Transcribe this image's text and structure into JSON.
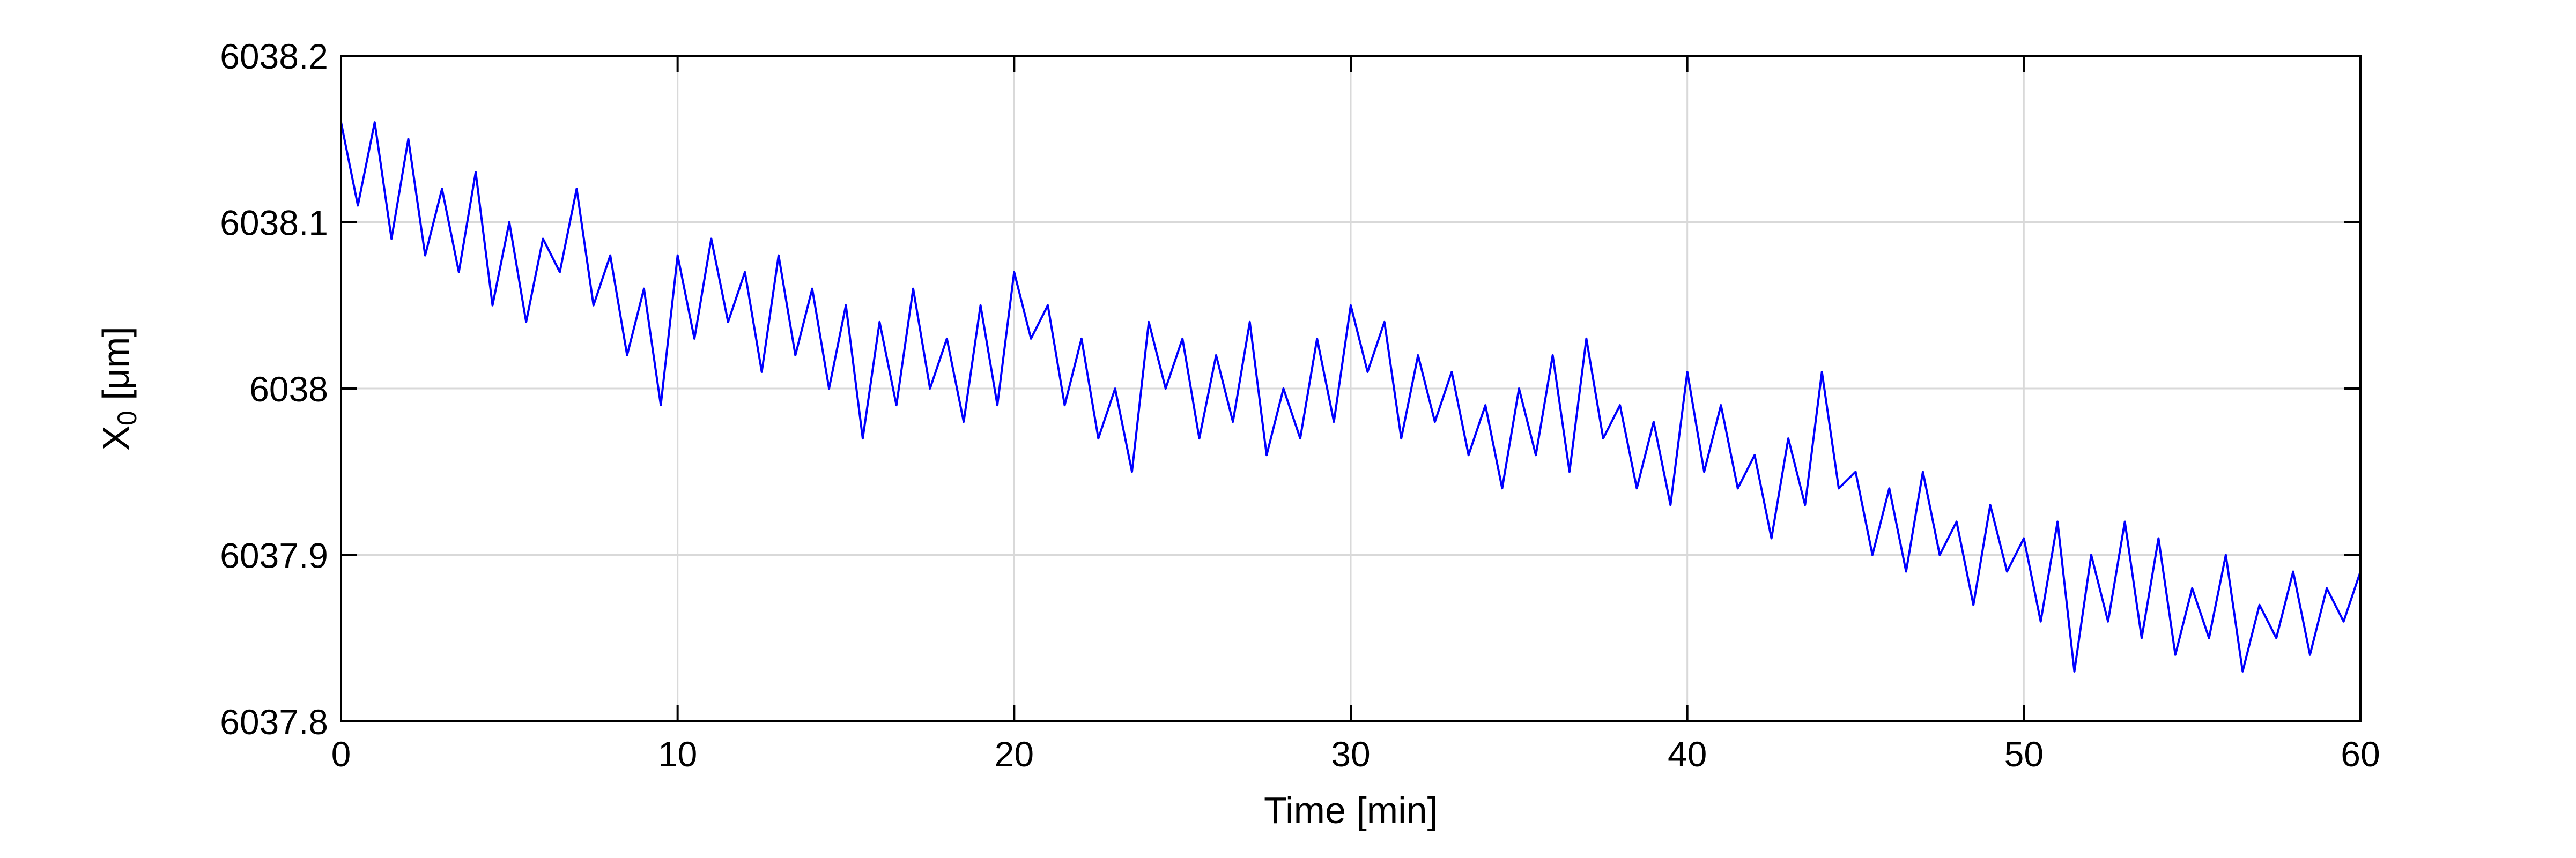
{
  "chart_data": {
    "type": "line",
    "xlabel": "Time [min]",
    "ylabel": "X",
    "ylabel_subscript": "0",
    "ylabel_unit": " [μm]",
    "xlim": [
      0,
      60
    ],
    "ylim": [
      6037.8,
      6038.2
    ],
    "x_ticks": [
      0,
      10,
      20,
      30,
      40,
      50,
      60
    ],
    "x_tick_labels": [
      "0",
      "10",
      "20",
      "30",
      "40",
      "50",
      "60"
    ],
    "y_ticks": [
      6037.8,
      6037.9,
      6038.0,
      6038.1,
      6038.2
    ],
    "y_tick_labels": [
      "6037.8",
      "6037.9",
      "6038",
      "6038.1",
      "6038.2"
    ],
    "grid": true,
    "series": [
      {
        "color": "#0000ff",
        "x": [
          0,
          0.5,
          1,
          1.5,
          2,
          2.5,
          3,
          3.5,
          4,
          4.5,
          5,
          5.5,
          6,
          6.5,
          7,
          7.5,
          8,
          8.5,
          9,
          9.5,
          10,
          10.5,
          11,
          11.5,
          12,
          12.5,
          13,
          13.5,
          14,
          14.5,
          15,
          15.5,
          16,
          16.5,
          17,
          17.5,
          18,
          18.5,
          19,
          19.5,
          20,
          20.5,
          21,
          21.5,
          22,
          22.5,
          23,
          23.5,
          24,
          24.5,
          25,
          25.5,
          26,
          26.5,
          27,
          27.5,
          28,
          28.5,
          29,
          29.5,
          30,
          30.5,
          31,
          31.5,
          32,
          32.5,
          33,
          33.5,
          34,
          34.5,
          35,
          35.5,
          36,
          36.5,
          37,
          37.5,
          38,
          38.5,
          39,
          39.5,
          40,
          40.5,
          41,
          41.5,
          42,
          42.5,
          43,
          43.5,
          44,
          44.5,
          45,
          45.5,
          46,
          46.5,
          47,
          47.5,
          48,
          48.5,
          49,
          49.5,
          50,
          50.5,
          51,
          51.5,
          52,
          52.5,
          53,
          53.5,
          54,
          54.5,
          55,
          55.5,
          56,
          56.5,
          57,
          57.5,
          58,
          58.5,
          59,
          59.5,
          60
        ],
        "values": [
          6038.16,
          6038.11,
          6038.16,
          6038.09,
          6038.15,
          6038.08,
          6038.12,
          6038.07,
          6038.13,
          6038.05,
          6038.1,
          6038.04,
          6038.09,
          6038.07,
          6038.12,
          6038.05,
          6038.08,
          6038.02,
          6038.06,
          6037.99,
          6038.08,
          6038.03,
          6038.09,
          6038.04,
          6038.07,
          6038.01,
          6038.08,
          6038.02,
          6038.06,
          6038.0,
          6038.05,
          6037.97,
          6038.04,
          6037.99,
          6038.06,
          6038.0,
          6038.03,
          6037.98,
          6038.05,
          6037.99,
          6038.07,
          6038.03,
          6038.05,
          6037.99,
          6038.03,
          6037.97,
          6038.0,
          6037.95,
          6038.04,
          6038.0,
          6038.03,
          6037.97,
          6038.02,
          6037.98,
          6038.04,
          6037.96,
          6038.0,
          6037.97,
          6038.03,
          6037.98,
          6038.05,
          6038.01,
          6038.04,
          6037.97,
          6038.02,
          6037.98,
          6038.01,
          6037.96,
          6037.99,
          6037.94,
          6038.0,
          6037.96,
          6038.02,
          6037.95,
          6038.03,
          6037.97,
          6037.99,
          6037.94,
          6037.98,
          6037.93,
          6038.01,
          6037.95,
          6037.99,
          6037.94,
          6037.96,
          6037.91,
          6037.97,
          6037.93,
          6038.01,
          6037.94,
          6037.95,
          6037.9,
          6037.94,
          6037.89,
          6037.95,
          6037.9,
          6037.92,
          6037.87,
          6037.93,
          6037.89,
          6037.91,
          6037.86,
          6037.92,
          6037.83,
          6037.9,
          6037.86,
          6037.92,
          6037.85,
          6037.91,
          6037.84,
          6037.88,
          6037.85,
          6037.9,
          6037.83,
          6037.87,
          6037.85,
          6037.89,
          6037.84,
          6037.88,
          6037.86,
          6037.89
        ]
      }
    ]
  }
}
